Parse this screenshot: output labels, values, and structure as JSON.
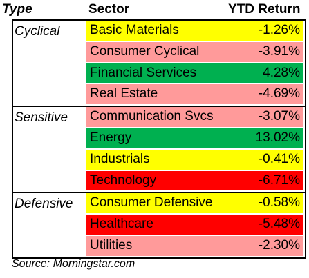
{
  "header": {
    "type": "Type",
    "sector": "Sector",
    "ytd": "YTD Return"
  },
  "groups": [
    {
      "type": "Cyclical",
      "rows": [
        {
          "sector": "Basic Materials",
          "return": "-1.26%",
          "color": "#ffff00"
        },
        {
          "sector": "Consumer Cyclical",
          "return": "-3.91%",
          "color": "#ff9a9a"
        },
        {
          "sector": "Financial Services",
          "return": "4.28%",
          "color": "#00b050"
        },
        {
          "sector": "Real Estate",
          "return": "-4.69%",
          "color": "#ff9a9a"
        }
      ]
    },
    {
      "type": "Sensitive",
      "rows": [
        {
          "sector": "Communication Svcs",
          "return": "-3.07%",
          "color": "#ff9a9a"
        },
        {
          "sector": "Energy",
          "return": "13.02%",
          "color": "#00b050"
        },
        {
          "sector": "Industrials",
          "return": "-0.41%",
          "color": "#ffff00"
        },
        {
          "sector": "Technology",
          "return": "-6.71%",
          "color": "#ff0000"
        }
      ]
    },
    {
      "type": "Defensive",
      "rows": [
        {
          "sector": "Consumer Defensive",
          "return": "-0.58%",
          "color": "#ffff00"
        },
        {
          "sector": "Healthcare",
          "return": "-5.48%",
          "color": "#ff0000"
        },
        {
          "sector": "Utilities",
          "return": "-2.30%",
          "color": "#ff9a9a"
        }
      ]
    }
  ],
  "source": "Source:  Morningstar.com"
}
